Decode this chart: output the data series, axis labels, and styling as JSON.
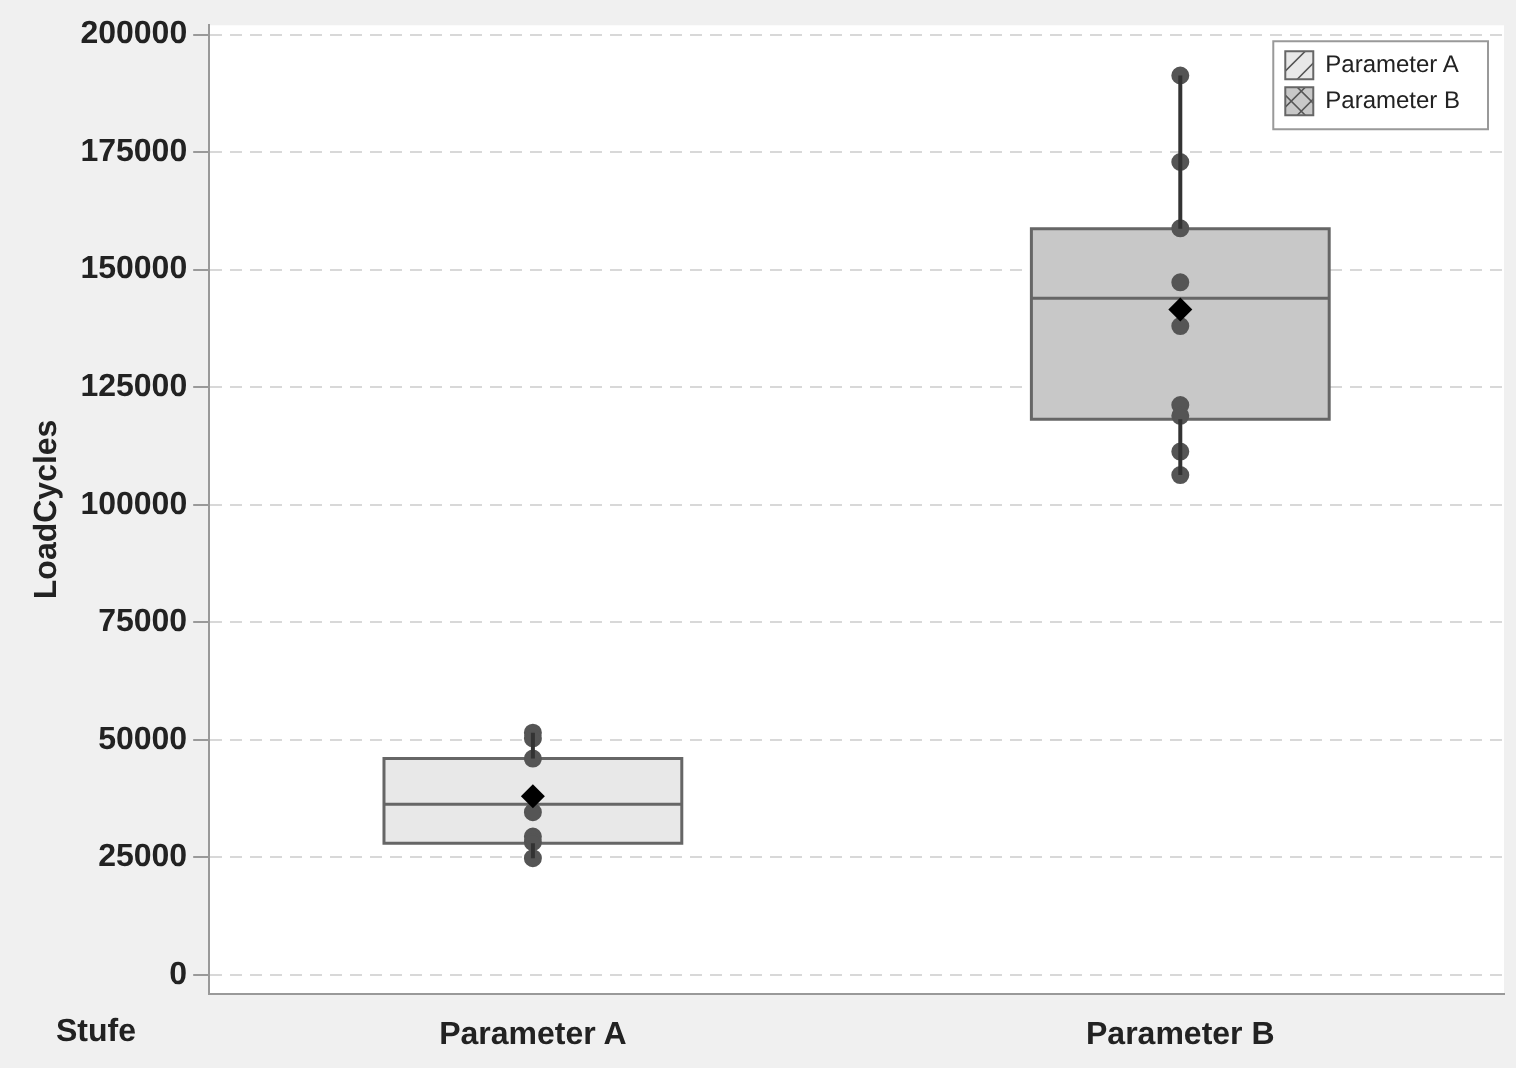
{
  "chart_data": {
    "type": "box",
    "xlabel": "Stufe",
    "ylabel": "LoadCycles",
    "categories": [
      "Parameter A",
      "Parameter B"
    ],
    "ylim": [
      -4000,
      202000
    ],
    "yticks": [
      0,
      25000,
      50000,
      75000,
      100000,
      125000,
      150000,
      175000,
      200000
    ],
    "grid": "y",
    "legend": "top right",
    "series": [
      {
        "name": "Parameter A",
        "color": "#e8e8e8",
        "boxes": [
          {
            "low": 24800,
            "q1": 28000,
            "median": 36300,
            "q3": 46000,
            "high": 51500,
            "mean": 38000
          },
          null
        ]
      },
      {
        "name": "Parameter B",
        "color": "#c8c8c8",
        "boxes": [
          null,
          {
            "low": 106300,
            "q1": 118200,
            "median": 143900,
            "q3": 158700,
            "high": 191300,
            "mean": 141500
          }
        ]
      },
      {
        "type": "scatter",
        "color": "#555555",
        "marker": "circle",
        "x": [
          "Parameter A",
          "Parameter A",
          "Parameter A",
          "Parameter A",
          "Parameter A",
          "Parameter A",
          "Parameter A",
          "Parameter B",
          "Parameter B",
          "Parameter B",
          "Parameter B",
          "Parameter B",
          "Parameter B",
          "Parameter B",
          "Parameter B",
          "Parameter B"
        ],
        "values": [
          51500,
          50300,
          46000,
          34600,
          29400,
          28200,
          24800,
          191300,
          172900,
          158800,
          147300,
          138000,
          121200,
          118900,
          111300,
          106300
        ]
      }
    ]
  }
}
